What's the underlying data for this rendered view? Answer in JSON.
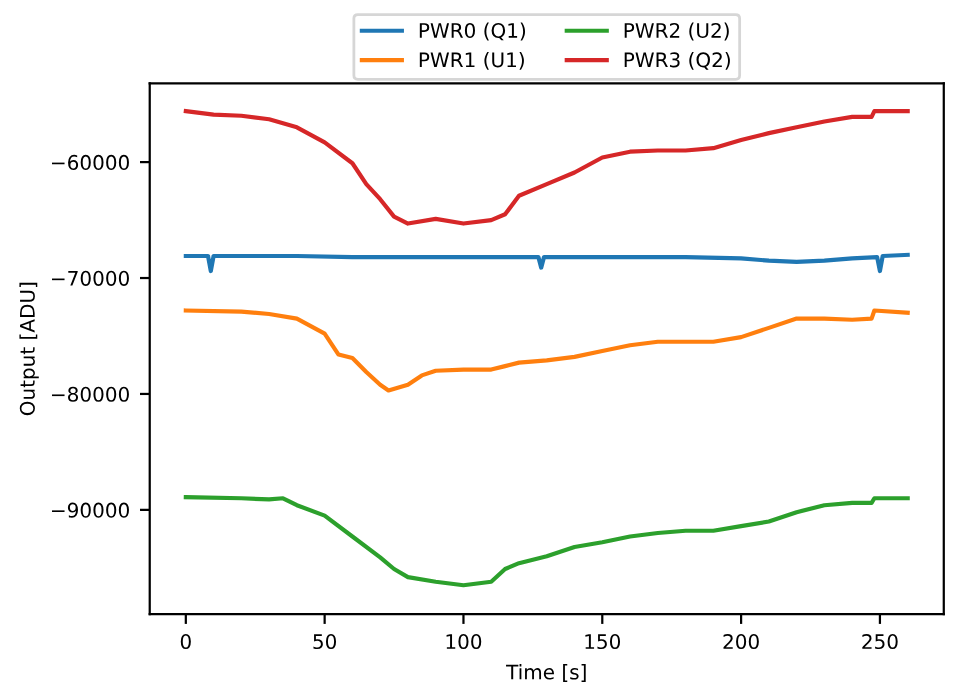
{
  "chart_data": {
    "type": "line",
    "xlabel": "Time [s]",
    "ylabel": "Output [ADU]",
    "xlim": [
      -13,
      273
    ],
    "ylim": [
      -99000,
      -53200
    ],
    "xticks": [
      0,
      50,
      100,
      150,
      200,
      250
    ],
    "yticks": [
      {
        "value": -90000,
        "label": "−90000"
      },
      {
        "value": -80000,
        "label": "−80000"
      },
      {
        "value": -70000,
        "label": "−70000"
      },
      {
        "value": -60000,
        "label": "−60000"
      }
    ],
    "legend": "top",
    "grid": false,
    "series": [
      {
        "name": "PWR0 (Q1)",
        "color": "#1f77b4",
        "x": [
          0,
          8,
          9,
          10,
          20,
          40,
          60,
          80,
          100,
          127,
          128,
          129,
          150,
          180,
          200,
          210,
          220,
          230,
          240,
          249,
          250,
          251,
          260
        ],
        "values": [
          -68100,
          -68100,
          -69400,
          -68100,
          -68100,
          -68100,
          -68200,
          -68200,
          -68200,
          -68200,
          -69100,
          -68200,
          -68200,
          -68200,
          -68300,
          -68500,
          -68600,
          -68500,
          -68300,
          -68200,
          -69400,
          -68100,
          -68000
        ]
      },
      {
        "name": "PWR1 (U1)",
        "color": "#ff7f0e",
        "x": [
          0,
          20,
          30,
          40,
          50,
          55,
          60,
          65,
          70,
          73,
          80,
          85,
          90,
          100,
          110,
          115,
          120,
          130,
          140,
          150,
          160,
          170,
          180,
          190,
          200,
          210,
          220,
          230,
          240,
          247,
          248,
          260
        ],
        "values": [
          -72800,
          -72900,
          -73100,
          -73500,
          -74800,
          -76600,
          -76900,
          -78100,
          -79200,
          -79700,
          -79200,
          -78400,
          -78000,
          -77900,
          -77900,
          -77600,
          -77300,
          -77100,
          -76800,
          -76300,
          -75800,
          -75500,
          -75500,
          -75500,
          -75100,
          -74300,
          -73500,
          -73500,
          -73600,
          -73500,
          -72800,
          -73000
        ]
      },
      {
        "name": "PWR2 (U2)",
        "color": "#2ca02c",
        "x": [
          0,
          20,
          30,
          35,
          40,
          50,
          60,
          70,
          75,
          80,
          90,
          100,
          110,
          115,
          120,
          130,
          140,
          150,
          160,
          170,
          180,
          190,
          200,
          210,
          220,
          230,
          240,
          247,
          248,
          260
        ],
        "values": [
          -88900,
          -89000,
          -89100,
          -89000,
          -89600,
          -90500,
          -92300,
          -94100,
          -95100,
          -95800,
          -96200,
          -96500,
          -96200,
          -95100,
          -94600,
          -94000,
          -93200,
          -92800,
          -92300,
          -92000,
          -91800,
          -91800,
          -91400,
          -91000,
          -90200,
          -89600,
          -89400,
          -89400,
          -89000,
          -89000
        ]
      },
      {
        "name": "PWR3 (Q2)",
        "color": "#d62728",
        "x": [
          0,
          10,
          20,
          30,
          40,
          50,
          60,
          65,
          70,
          75,
          80,
          90,
          100,
          110,
          115,
          120,
          130,
          140,
          150,
          160,
          170,
          180,
          190,
          200,
          210,
          220,
          230,
          240,
          247,
          248,
          260
        ],
        "values": [
          -55600,
          -55900,
          -56000,
          -56300,
          -57000,
          -58300,
          -60100,
          -61900,
          -63200,
          -64700,
          -65300,
          -64900,
          -65300,
          -65000,
          -64500,
          -62900,
          -61900,
          -60900,
          -59600,
          -59100,
          -59000,
          -59000,
          -58800,
          -58100,
          -57500,
          -57000,
          -56500,
          -56100,
          -56100,
          -55600,
          -55600
        ]
      }
    ]
  }
}
